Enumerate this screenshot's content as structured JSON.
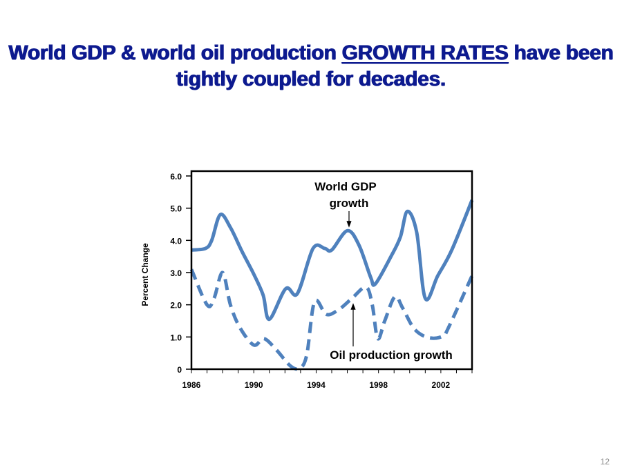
{
  "slide": {
    "title_part1": "World GDP & world oil production ",
    "title_emphasis": "GROWTH RATES",
    "title_part2": " have been tightly coupled for decades.",
    "page_number": "12",
    "title_color": "#0d1a8f"
  },
  "chart_data": {
    "type": "line",
    "title": "",
    "xlabel": "",
    "ylabel": "Percent Change",
    "xlim": [
      1986,
      2004
    ],
    "ylim": [
      0,
      6
    ],
    "x_ticks": [
      1986,
      1990,
      1994,
      1998,
      2002
    ],
    "y_ticks": [
      "0",
      "1.0",
      "2.0",
      "3.0",
      "4.0",
      "5.0",
      "6.0"
    ],
    "grid": false,
    "legend": "none",
    "series_color": "#4f81bd",
    "annotations": {
      "gdp": [
        "World GDP",
        "growth"
      ],
      "oil": "Oil production growth"
    },
    "series": [
      {
        "name": "World GDP growth",
        "style": "solid",
        "x": [
          1986.0,
          1986.9,
          1987.3,
          1987.85,
          1988.5,
          1989.25,
          1990.0,
          1990.6,
          1991.0,
          1992.05,
          1992.8,
          1993.8,
          1994.55,
          1995.0,
          1996.0,
          1996.75,
          1997.5,
          1997.8,
          1998.8,
          1999.4,
          1999.85,
          2000.45,
          2001.0,
          2001.8,
          2002.7,
          2004.0
        ],
        "y": [
          3.7,
          3.75,
          4.0,
          4.8,
          4.4,
          3.65,
          2.95,
          2.3,
          1.55,
          2.5,
          2.35,
          3.75,
          3.75,
          3.7,
          4.3,
          3.85,
          2.85,
          2.65,
          3.5,
          4.1,
          4.9,
          4.25,
          2.2,
          2.9,
          3.7,
          5.25
        ]
      },
      {
        "name": "Oil production growth",
        "style": "dashed",
        "x": [
          1986.0,
          1987.0,
          1987.45,
          1988.0,
          1988.5,
          1989.1,
          1990.0,
          1990.65,
          1991.45,
          1992.35,
          1992.95,
          1993.4,
          1993.9,
          1994.65,
          1995.45,
          1996.3,
          1997.2,
          1997.6,
          1997.95,
          1998.4,
          1999.05,
          1999.55,
          2000.3,
          2001.2,
          2002.1,
          2002.5,
          2004.0
        ],
        "y": [
          3.1,
          2.0,
          2.2,
          3.0,
          2.0,
          1.3,
          0.75,
          0.95,
          0.6,
          0.1,
          0.03,
          0.45,
          2.1,
          1.7,
          1.85,
          2.2,
          2.55,
          2.0,
          0.95,
          1.5,
          2.25,
          1.9,
          1.25,
          0.98,
          1.02,
          1.3,
          2.9
        ]
      }
    ]
  }
}
